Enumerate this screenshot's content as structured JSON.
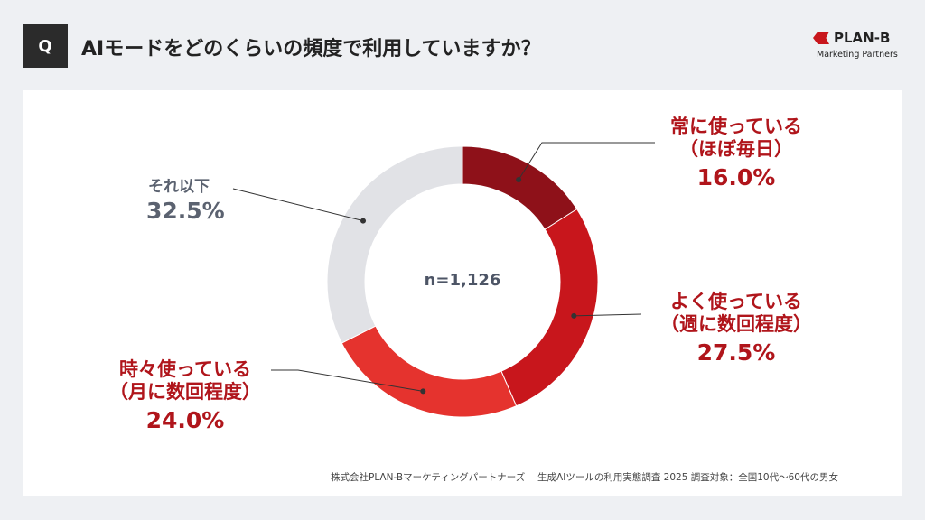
{
  "header": {
    "q_label": "Q",
    "title": "AIモードをどのくらいの頻度で利用していますか？"
  },
  "logo": {
    "name": "PLAN-B",
    "sub": "Marketing Partners"
  },
  "chart_data": {
    "type": "pie",
    "donut": true,
    "center_label": "n=1,126",
    "slices": [
      {
        "label": "常に使っている（ほぼ毎日）",
        "line1": "常に使っている",
        "line2": "（ほぼ毎日）",
        "value": 16.0,
        "display": "16.0%",
        "color": "#8e1119"
      },
      {
        "label": "よく使っている（週に数回程度）",
        "line1": "よく使っている",
        "line2": "（週に数回程度）",
        "value": 27.5,
        "display": "27.5%",
        "color": "#c8161c"
      },
      {
        "label": "時々使っている（月に数回程度）",
        "line1": "時々使っている",
        "line2": "（月に数回程度）",
        "value": 24.0,
        "display": "24.0%",
        "color": "#e5332e"
      },
      {
        "label": "それ以下",
        "line1": "それ以下",
        "line2": "",
        "value": 32.5,
        "display": "32.5%",
        "color": "#e1e2e6"
      }
    ]
  },
  "footer": "株式会社PLAN-Bマーケティングパートナーズ　 生成AIツールの利用実態調査 2025 調査対象：全国10代〜60代の男女"
}
